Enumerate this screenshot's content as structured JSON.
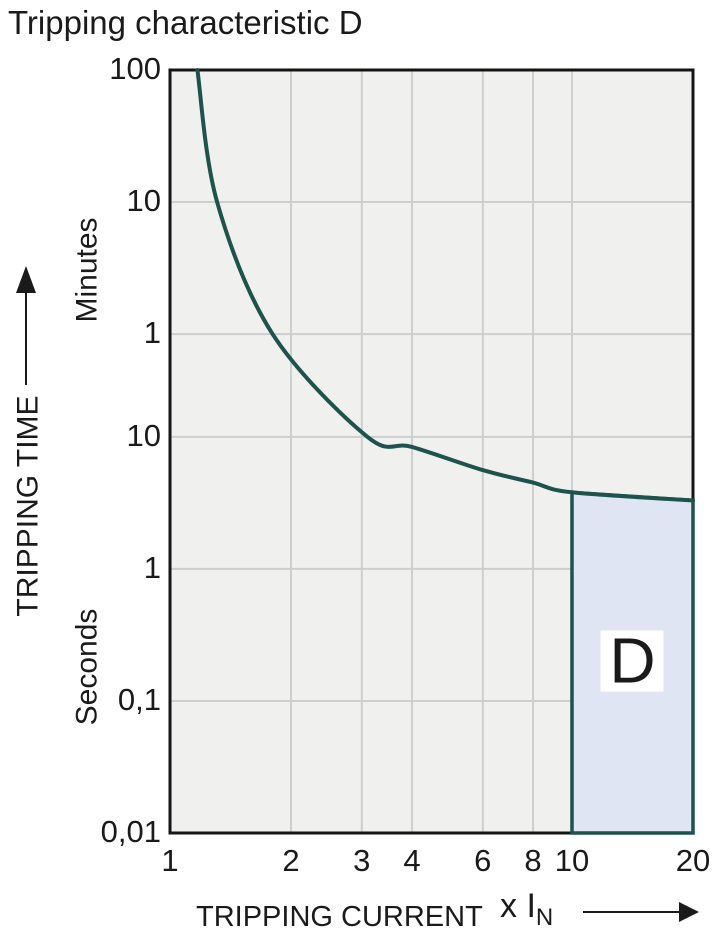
{
  "title": "Tripping characteristic D",
  "colors": {
    "curve": "#1e524d",
    "region_fill": "#dfe5f3",
    "plot_bg": "#f0f0ee",
    "grid": "#cdced0",
    "ink": "#1a1a1a",
    "region_label_bg": "#ffffff"
  },
  "y_axis": {
    "title": "TRIPPING TIME",
    "unit_upper": "Minutes",
    "unit_lower": "Seconds",
    "ticks": [
      {
        "label": "100",
        "t": 6000,
        "grid": false
      },
      {
        "label": "10",
        "t": 600,
        "grid": true
      },
      {
        "label": "1",
        "t": 60,
        "grid": true
      },
      {
        "label": "10",
        "t": 10,
        "grid": true
      },
      {
        "label": "1",
        "t": 1,
        "grid": true
      },
      {
        "label": "0,1",
        "t": 0.1,
        "grid": true
      },
      {
        "label": "0,01",
        "t": 0.01,
        "grid": false
      }
    ]
  },
  "x_axis": {
    "title": "TRIPPING CURRENT",
    "multiplier": "x I",
    "multiplier_sub": "N",
    "ticks": [
      {
        "label": "1",
        "v": 1,
        "grid": false
      },
      {
        "label": "2",
        "v": 2,
        "grid": true
      },
      {
        "label": "3",
        "v": 3,
        "grid": true
      },
      {
        "label": "4",
        "v": 4,
        "grid": true
      },
      {
        "label": "6",
        "v": 6,
        "grid": true
      },
      {
        "label": "8",
        "v": 8,
        "grid": true
      },
      {
        "label": "10",
        "v": 10,
        "grid": true
      },
      {
        "label": "20",
        "v": 20,
        "grid": false
      }
    ]
  },
  "region": {
    "label": "D"
  },
  "chart_data": {
    "type": "line",
    "title": "Tripping characteristic D",
    "xlabel": "TRIPPING CURRENT (x IN)",
    "ylabel": "TRIPPING TIME (minutes / seconds)",
    "x_scale": "log",
    "y_scale": "log",
    "xlim": [
      1,
      20
    ],
    "ylim_seconds": [
      0.01,
      6000
    ],
    "grid": true,
    "curve_points_x_vs_seconds": [
      [
        1.17,
        6000
      ],
      [
        1.31,
        600
      ],
      [
        1.8,
        60
      ],
      [
        3.1,
        10
      ],
      [
        4.0,
        8.4
      ],
      [
        6.0,
        5.6
      ],
      [
        8.0,
        4.5
      ],
      [
        10.0,
        3.8
      ],
      [
        20.0,
        3.3
      ]
    ],
    "region": {
      "label": "D",
      "x_range": [
        10,
        20
      ],
      "t_top_at_x10": 3.8,
      "t_top_at_x20": 3.3,
      "t_bottom": 0.01
    }
  }
}
